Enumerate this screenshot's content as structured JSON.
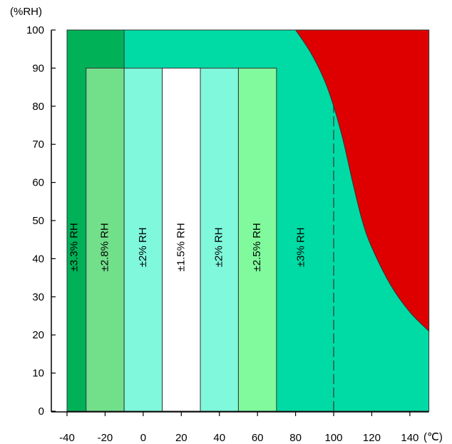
{
  "chart_data": {
    "type": "area",
    "title": "",
    "x_unit": "(℃)",
    "y_unit": "(%RH)",
    "xlim": [
      -40,
      150
    ],
    "ylim": [
      0,
      100
    ],
    "x_ticks": [
      -40,
      -20,
      0,
      20,
      40,
      60,
      80,
      100,
      120,
      140
    ],
    "y_ticks": [
      0,
      10,
      20,
      30,
      40,
      50,
      60,
      70,
      80,
      90,
      100
    ],
    "grid": false,
    "zones": [
      {
        "name": "outer",
        "color": "#00dba5",
        "t_range": [
          -40,
          150
        ],
        "rh_range": [
          0,
          100
        ]
      },
      {
        "name": "±3.3% RH",
        "color": "#00b158",
        "t_range": [
          -40,
          -10
        ],
        "rh_range": [
          0,
          100
        ]
      },
      {
        "name": "±2.8% RH",
        "color": "#72df8b",
        "t_range": [
          -30,
          -10
        ],
        "rh_range": [
          0,
          90
        ]
      },
      {
        "name": "±2% RH",
        "color": "#7ff8dc",
        "t_range": [
          -10,
          10
        ],
        "rh_range": [
          0,
          90
        ]
      },
      {
        "name": "±1.5% RH",
        "color": "#ffffff",
        "t_range": [
          10,
          30
        ],
        "rh_range": [
          0,
          90
        ]
      },
      {
        "name": "±2% RH",
        "color": "#7ff8dc",
        "t_range": [
          30,
          50
        ],
        "rh_range": [
          0,
          90
        ]
      },
      {
        "name": "±2.5% RH",
        "color": "#80fa9c",
        "t_range": [
          50,
          70
        ],
        "rh_range": [
          0,
          90
        ]
      }
    ],
    "labels": [
      {
        "text": "±3.3% RH",
        "t": -36,
        "rh": 43
      },
      {
        "text": "±2.8% RH",
        "t": -20,
        "rh": 43
      },
      {
        "text": "±2% RH",
        "t": 0,
        "rh": 43
      },
      {
        "text": "±1.5% RH",
        "t": 20,
        "rh": 43
      },
      {
        "text": "±2% RH",
        "t": 40,
        "rh": 43
      },
      {
        "text": "±2.5% RH",
        "t": 60,
        "rh": 43
      },
      {
        "text": "±3% RH",
        "t": 83,
        "rh": 43
      }
    ],
    "dashed_line": {
      "t": 100,
      "rh_range": [
        0,
        80
      ]
    },
    "red_region": {
      "color": "#de0000",
      "boundary": [
        {
          "t": 80,
          "rh": 100
        },
        {
          "t": 88,
          "rh": 94
        },
        {
          "t": 95,
          "rh": 87
        },
        {
          "t": 100,
          "rh": 80
        },
        {
          "t": 105,
          "rh": 71
        },
        {
          "t": 110,
          "rh": 60
        },
        {
          "t": 115,
          "rh": 50
        },
        {
          "t": 120,
          "rh": 43
        },
        {
          "t": 130,
          "rh": 33
        },
        {
          "t": 140,
          "rh": 26
        },
        {
          "t": 150,
          "rh": 21
        }
      ]
    }
  }
}
